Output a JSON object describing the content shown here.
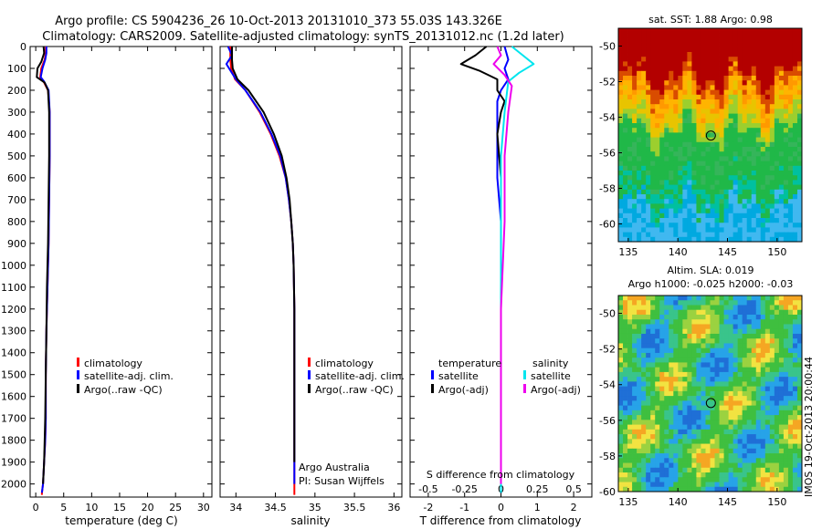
{
  "title_line1": "Argo profile: CS 5904236_26 10-Oct-2013 20131010_373 55.03S 143.326E",
  "title_line2": "Climatology: CARS2009. Satellite-adjusted climatology: synTS_20131012.nc (1.2d later)",
  "credit_line1": "Argo Australia",
  "credit_line2": "PI: Susan Wijffels",
  "side_stamp": "IMOS 19-Oct-2013 20:00:44",
  "colors": {
    "climatology": "#ff0000",
    "satellite": "#0000ff",
    "argo": "#000000",
    "sal_satellite": "#00e5ee",
    "sal_argo": "#ee00ee"
  },
  "chart_data": [
    {
      "type": "line",
      "id": "temperature",
      "xlabel": "temperature (deg C)",
      "xlim": [
        -1,
        31.5
      ],
      "xticks": [
        0,
        5,
        10,
        15,
        20,
        25,
        30
      ],
      "ylim": [
        0,
        2060
      ],
      "yticks": [
        0,
        100,
        200,
        300,
        400,
        500,
        600,
        700,
        800,
        900,
        1000,
        1100,
        1200,
        1300,
        1400,
        1500,
        1600,
        1700,
        1800,
        1900,
        2000
      ],
      "legend": [
        "climatology",
        "satellite-adj. clim.",
        "Argo(..raw -QC)"
      ],
      "series": [
        {
          "name": "climatology",
          "color": "#ff0000",
          "x": [
            1.8,
            1.8,
            1.6,
            1.0,
            0.8,
            1.4,
            2.2,
            2.5,
            2.5,
            2.4,
            2.3,
            2.1,
            1.9,
            1.8,
            1.8,
            1.7,
            1.5,
            1.3,
            1.1,
            1.1
          ],
          "y": [
            0,
            30,
            60,
            100,
            140,
            160,
            200,
            300,
            500,
            700,
            900,
            1100,
            1300,
            1500,
            1700,
            1800,
            1900,
            2000,
            2040,
            2050
          ]
        },
        {
          "name": "satellite-adj. clim.",
          "color": "#0000ff",
          "x": [
            1.9,
            1.9,
            1.7,
            1.2,
            0.9,
            1.5,
            2.3,
            2.5,
            2.5,
            2.4,
            2.3,
            2.1,
            1.9,
            1.8,
            1.8,
            1.7,
            1.5,
            1.3,
            1.1
          ],
          "y": [
            0,
            30,
            60,
            100,
            140,
            160,
            200,
            300,
            500,
            700,
            900,
            1100,
            1300,
            1500,
            1700,
            1800,
            1900,
            2000,
            2040
          ]
        },
        {
          "name": "Argo(..raw -QC)",
          "color": "#000000",
          "x": [
            1.4,
            1.5,
            1.0,
            0.3,
            0.2,
            1.6,
            2.2,
            2.4,
            2.4,
            2.3,
            2.2,
            2.0,
            1.9,
            1.8,
            1.7,
            1.6,
            1.5,
            1.3
          ],
          "y": [
            0,
            30,
            70,
            100,
            140,
            165,
            200,
            300,
            500,
            700,
            900,
            1100,
            1300,
            1500,
            1700,
            1800,
            1900,
            2000
          ]
        }
      ]
    },
    {
      "type": "line",
      "id": "salinity",
      "xlabel": "salinity",
      "xlim": [
        33.8,
        36.1
      ],
      "xticks": [
        34,
        34.5,
        35,
        35.5,
        36
      ],
      "xticklabels": [
        "34",
        "34.5",
        "35",
        "35.5",
        "36"
      ],
      "ylim": [
        0,
        2060
      ],
      "legend": [
        "climatology",
        "satellite-adj. clim.",
        "Argo(..raw -QC)"
      ],
      "series": [
        {
          "name": "climatology",
          "color": "#ff0000",
          "x": [
            33.93,
            33.93,
            33.94,
            33.99,
            34.12,
            34.3,
            34.44,
            34.55,
            34.63,
            34.67,
            34.7,
            34.72,
            34.73,
            34.74,
            34.74,
            34.74,
            34.74
          ],
          "y": [
            0,
            60,
            100,
            150,
            200,
            300,
            400,
            500,
            600,
            700,
            800,
            900,
            1000,
            1200,
            1500,
            1800,
            2050
          ]
        },
        {
          "name": "satellite-adj. clim.",
          "color": "#0000ff",
          "x": [
            33.9,
            33.95,
            33.88,
            34.0,
            34.12,
            34.31,
            34.45,
            34.56,
            34.63,
            34.67,
            34.7,
            34.72,
            34.73,
            34.74,
            34.74,
            34.74,
            34.74
          ],
          "y": [
            0,
            40,
            80,
            150,
            200,
            300,
            400,
            500,
            600,
            700,
            800,
            900,
            1000,
            1200,
            1500,
            1800,
            2000
          ]
        },
        {
          "name": "Argo(..raw -QC)",
          "color": "#000000",
          "x": [
            33.95,
            33.95,
            33.96,
            34.02,
            34.16,
            34.35,
            34.48,
            34.58,
            34.64,
            34.68,
            34.7,
            34.72,
            34.73,
            34.74,
            34.74,
            34.74
          ],
          "y": [
            0,
            60,
            100,
            150,
            200,
            300,
            400,
            500,
            600,
            700,
            800,
            900,
            1000,
            1200,
            1500,
            1900
          ]
        }
      ]
    },
    {
      "type": "line",
      "id": "difference",
      "xlabel": "T difference from climatology",
      "xlabel_top": "S difference from climatology",
      "xlim": [
        -2.5,
        2.5
      ],
      "xticks": [
        -2,
        -1,
        0,
        1,
        2
      ],
      "s_ticklabels": [
        "-0.5",
        "-0.25",
        "0",
        "0.25",
        "0.5"
      ],
      "ylim": [
        0,
        2060
      ],
      "legend_temperature": {
        "title": "temperature",
        "items": [
          "satellite",
          "Argo(-adj)"
        ]
      },
      "legend_salinity": {
        "title": "salinity",
        "items": [
          "satellite",
          "Argo(-adj)"
        ]
      },
      "series": [
        {
          "name": "temperature satellite",
          "color": "#0000ff",
          "x": [
            0.1,
            0.2,
            0.1,
            0.2,
            0.0,
            -0.1,
            -0.1,
            -0.1,
            -0.1,
            0.0,
            0.0,
            0.0,
            0.0,
            0.0
          ],
          "y": [
            0,
            60,
            100,
            150,
            200,
            250,
            300,
            400,
            600,
            800,
            1000,
            1400,
            1800,
            2040
          ]
        },
        {
          "name": "temperature Argo(-adj)",
          "color": "#000000",
          "x": [
            -0.4,
            -0.7,
            -1.1,
            -0.6,
            -0.1,
            -0.1,
            0.1,
            0.0,
            -0.1,
            0.0,
            0.0,
            0.0,
            0.0,
            0.0
          ],
          "y": [
            0,
            40,
            80,
            110,
            150,
            200,
            250,
            300,
            400,
            600,
            800,
            1200,
            1600,
            2000
          ]
        },
        {
          "name": "salinity satellite",
          "color": "#00e5ee",
          "x": [
            0.3,
            0.6,
            0.9,
            0.5,
            0.2,
            0.1,
            0.0,
            0.0,
            0.0,
            0.0,
            0.0
          ],
          "y": [
            0,
            40,
            80,
            120,
            160,
            300,
            500,
            800,
            1200,
            1600,
            2040
          ]
        },
        {
          "name": "salinity Argo(-adj)",
          "color": "#ee00ee",
          "x": [
            -0.1,
            0.0,
            -0.2,
            0.1,
            0.3,
            0.2,
            0.1,
            0.1,
            0.0,
            0.0,
            0.0
          ],
          "y": [
            0,
            40,
            80,
            130,
            180,
            300,
            500,
            800,
            1200,
            1600,
            2000
          ]
        }
      ]
    },
    {
      "type": "heatmap",
      "id": "sst_map",
      "title": "sat. SST: 1.88 Argo: 0.98",
      "xlim": [
        134,
        152.5
      ],
      "ylim": [
        -61,
        -49
      ],
      "xticks": [
        135,
        140,
        145,
        150
      ],
      "yticks": [
        -50,
        -52,
        -54,
        -56,
        -58,
        -60
      ],
      "marker": {
        "lon": 143.326,
        "lat": -55.03
      }
    },
    {
      "type": "heatmap",
      "id": "sla_map",
      "title": "Altim. SLA: 0.019",
      "subtitle": "Argo h1000: -0.025 h2000: -0.03",
      "xlim": [
        134,
        152.5
      ],
      "ylim": [
        -60,
        -49
      ],
      "xticks": [
        135,
        140,
        145,
        150
      ],
      "yticks": [
        -50,
        -52,
        -54,
        -56,
        -58,
        -60
      ],
      "marker": {
        "lon": 143.326,
        "lat": -55.03
      }
    }
  ]
}
